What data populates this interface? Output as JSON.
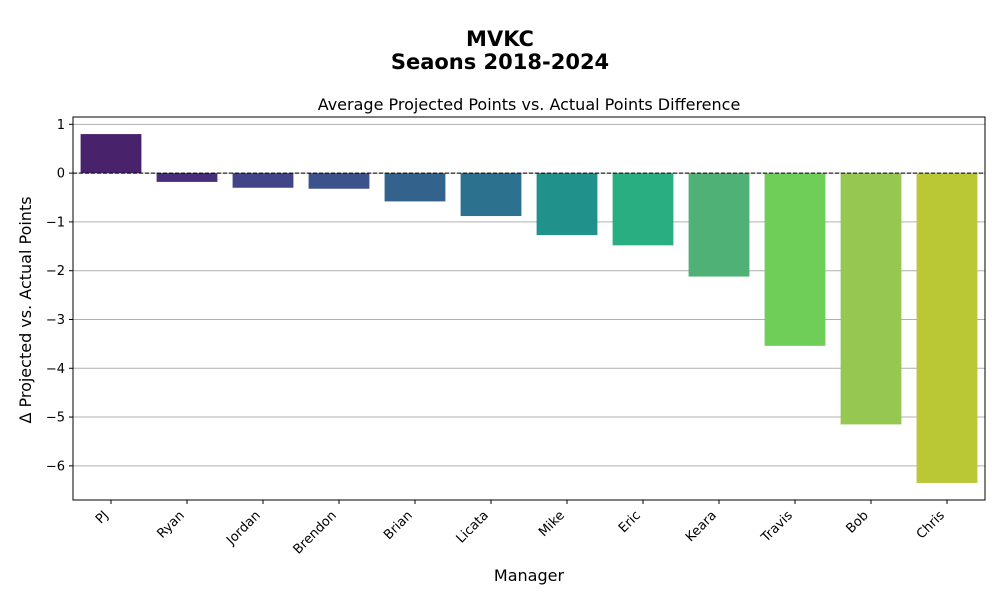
{
  "suptitle_line1": "MVKC",
  "suptitle_line2": "Seaons 2018-2024",
  "chart_data": {
    "type": "bar",
    "title": "Average Projected Points vs. Actual Points Difference",
    "xlabel": "Manager",
    "ylabel": "Δ Projected vs. Actual Points",
    "categories": [
      "PJ",
      "Ryan",
      "Jordan",
      "Brendon",
      "Brian",
      "Licata",
      "Mike",
      "Eric",
      "Keara",
      "Travis",
      "Bob",
      "Chris"
    ],
    "values": [
      0.8,
      -0.18,
      -0.3,
      -0.32,
      -0.58,
      -0.88,
      -1.27,
      -1.48,
      -2.12,
      -3.54,
      -5.15,
      -6.35
    ],
    "colors": [
      "#48226b",
      "#472d7b",
      "#414487",
      "#3b528b",
      "#33638d",
      "#2c728e",
      "#21918c",
      "#28ae80",
      "#4fb175",
      "#6ece58",
      "#95c751",
      "#b9c834"
    ],
    "yticks": [
      1,
      0,
      -1,
      -2,
      -3,
      -4,
      -5,
      -6
    ],
    "ytick_labels": [
      "1",
      "0",
      "−1",
      "−2",
      "−3",
      "−4",
      "−5",
      "−6"
    ],
    "ylim": [
      -6.7,
      1.15
    ],
    "grid": "y",
    "reference_line": 0
  }
}
